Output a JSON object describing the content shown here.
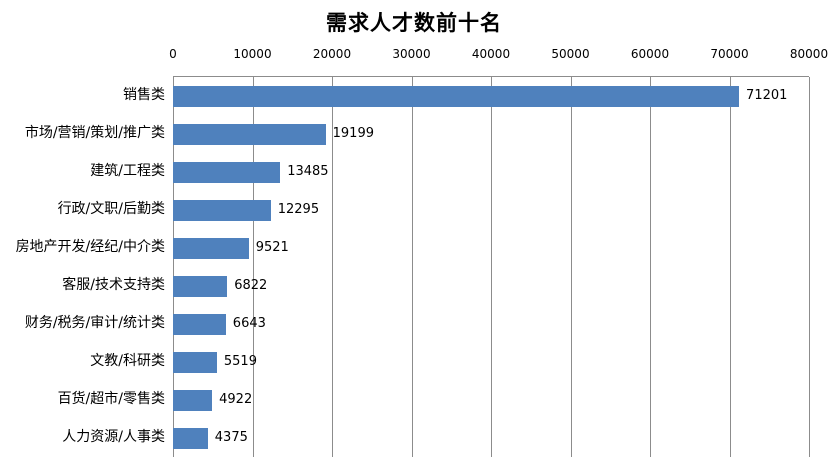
{
  "chart_data": {
    "type": "bar",
    "orientation": "horizontal",
    "title": "需求人才数前十名",
    "categories": [
      "销售类",
      "市场/营销/策划/推广类",
      "建筑/工程类",
      "行政/文职/后勤类",
      "房地产开发/经纪/中介类",
      "客服/技术支持类",
      "财务/税务/审计/统计类",
      "文教/科研类",
      "百货/超市/零售类",
      "人力资源/人事类"
    ],
    "values": [
      71201,
      19199,
      13485,
      12295,
      9521,
      6822,
      6643,
      5519,
      4922,
      4375
    ],
    "value_labels": [
      "71201",
      "19199",
      "13485",
      "12295",
      "9521",
      "6822",
      "6643",
      "5519",
      "4922",
      "4375"
    ],
    "xlim": [
      0,
      80000
    ],
    "x_tick_labels": [
      "0",
      "10000",
      "20000",
      "30000",
      "40000",
      "50000",
      "60000",
      "70000",
      "80000"
    ],
    "xlabel": "",
    "ylabel": "",
    "legend": "none",
    "grid": "vertical",
    "bar_color": "#4f81bd",
    "gridline_color": "#8c8c8c",
    "text_color": "#000000",
    "background_color": "#ffffff"
  }
}
